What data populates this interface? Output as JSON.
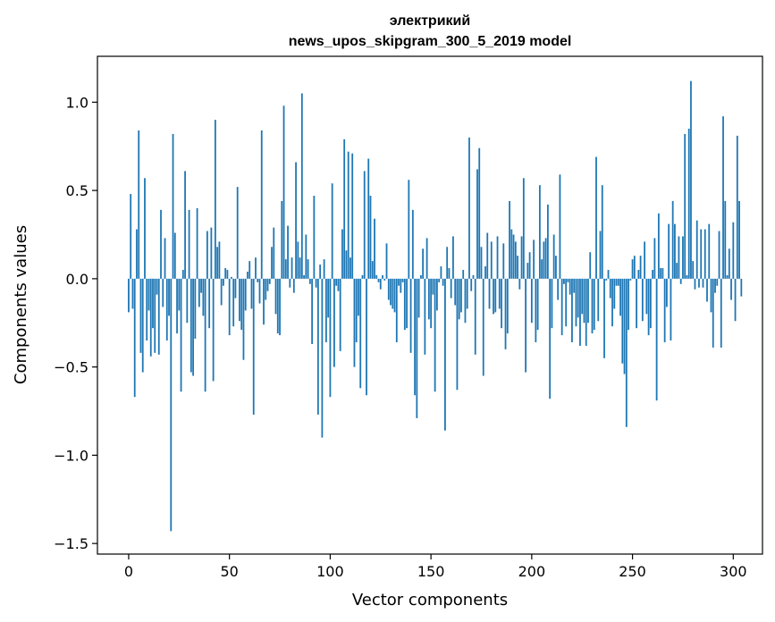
{
  "chart_data": {
    "type": "bar",
    "title": "электрикий",
    "subtitle": "news_upos_skipgram_300_5_2019 model",
    "xlabel": "Vector components",
    "ylabel": "Components values",
    "xlim": [
      -15.5,
      314.5
    ],
    "ylim": [
      -1.56,
      1.26
    ],
    "xticks": [
      0,
      50,
      100,
      150,
      200,
      250,
      300
    ],
    "xtick_labels": [
      "0",
      "50",
      "100",
      "150",
      "200",
      "250",
      "300"
    ],
    "yticks": [
      -1.5,
      -1.0,
      -0.5,
      0.0,
      0.5,
      1.0
    ],
    "ytick_labels": [
      "−1.5",
      "−1.0",
      "−0.5",
      "0.0",
      "0.5",
      "1.0"
    ],
    "grid": false,
    "bar_color": "#1f77b4",
    "values": [
      -0.19,
      0.48,
      -0.17,
      -0.67,
      0.28,
      0.84,
      -0.42,
      -0.53,
      0.57,
      -0.35,
      -0.18,
      -0.44,
      -0.28,
      -0.42,
      -0.09,
      -0.43,
      0.39,
      -0.16,
      0.23,
      -0.35,
      -0.21,
      -1.43,
      0.82,
      0.26,
      -0.31,
      -0.18,
      -0.64,
      0.05,
      0.61,
      -0.25,
      0.39,
      -0.53,
      -0.55,
      -0.34,
      0.4,
      -0.16,
      -0.08,
      -0.21,
      -0.64,
      0.27,
      -0.28,
      0.29,
      -0.58,
      0.9,
      0.18,
      0.21,
      -0.15,
      -0.04,
      0.06,
      0.05,
      -0.32,
      0.01,
      -0.27,
      -0.11,
      0.52,
      -0.24,
      -0.29,
      -0.46,
      -0.18,
      0.04,
      0.1,
      -0.17,
      -0.77,
      0.12,
      -0.02,
      -0.14,
      0.84,
      -0.26,
      -0.12,
      -0.07,
      -0.03,
      0.18,
      0.29,
      -0.2,
      -0.31,
      -0.32,
      0.44,
      0.98,
      0.11,
      0.3,
      -0.05,
      0.12,
      -0.08,
      0.66,
      0.21,
      0.12,
      1.05,
      0.02,
      0.25,
      0.11,
      -0.03,
      -0.37,
      0.47,
      -0.05,
      -0.77,
      0.08,
      -0.9,
      0.11,
      -0.36,
      -0.22,
      -0.67,
      0.54,
      -0.5,
      -0.04,
      -0.07,
      -0.41,
      0.28,
      0.79,
      0.16,
      0.72,
      0.12,
      0.71,
      -0.5,
      -0.36,
      -0.21,
      -0.62,
      0.02,
      0.61,
      -0.66,
      0.68,
      0.47,
      0.1,
      0.34,
      0.02,
      -0.02,
      -0.06,
      0.02,
      -0.01,
      0.2,
      -0.12,
      -0.15,
      -0.17,
      -0.19,
      -0.36,
      -0.04,
      -0.08,
      -0.02,
      -0.29,
      -0.28,
      0.56,
      -0.42,
      0.39,
      -0.66,
      -0.79,
      -0.22,
      0.02,
      0.17,
      -0.43,
      0.23,
      -0.23,
      -0.28,
      -0.09,
      -0.64,
      -0.18,
      -0.02,
      0.07,
      -0.04,
      -0.86,
      0.18,
      0.06,
      -0.11,
      0.24,
      -0.15,
      -0.63,
      -0.23,
      -0.19,
      0.05,
      -0.25,
      -0.17,
      0.8,
      -0.07,
      0.02,
      -0.43,
      0.62,
      0.74,
      0.18,
      -0.55,
      0.07,
      0.26,
      -0.17,
      0.21,
      -0.2,
      -0.19,
      0.24,
      -0.17,
      -0.28,
      0.2,
      -0.4,
      -0.31,
      0.44,
      0.28,
      0.25,
      0.21,
      0.13,
      -0.06,
      0.24,
      0.57,
      -0.53,
      0.09,
      0.15,
      -0.25,
      0.22,
      -0.36,
      -0.29,
      0.53,
      0.11,
      0.21,
      0.23,
      0.42,
      -0.68,
      -0.28,
      0.25,
      0.13,
      -0.12,
      0.59,
      -0.32,
      -0.03,
      -0.27,
      -0.02,
      -0.09,
      -0.36,
      -0.08,
      -0.27,
      -0.22,
      -0.38,
      -0.2,
      -0.25,
      -0.38,
      -0.25,
      0.15,
      -0.31,
      -0.29,
      0.69,
      -0.24,
      0.27,
      0.53,
      -0.45,
      -0.01,
      0.05,
      -0.11,
      -0.27,
      -0.17,
      -0.04,
      -0.04,
      -0.21,
      -0.48,
      -0.54,
      -0.84,
      -0.29,
      -0.01,
      0.11,
      0.13,
      -0.28,
      0.05,
      0.13,
      -0.24,
      0.21,
      -0.2,
      -0.32,
      -0.28,
      0.05,
      0.23,
      -0.69,
      0.37,
      0.06,
      0.06,
      -0.36,
      -0.16,
      0.31,
      -0.35,
      0.44,
      0.31,
      0.09,
      0.24,
      -0.03,
      0.24,
      0.82,
      0.02,
      0.85,
      1.12,
      0.1,
      -0.06,
      0.33,
      -0.05,
      0.28,
      -0.05,
      0.28,
      -0.13,
      0.31,
      -0.19,
      -0.39,
      -0.08,
      -0.04,
      0.27,
      -0.39,
      0.92,
      0.44,
      0.02,
      0.17,
      -0.12,
      0.32,
      -0.24,
      0.81,
      0.44,
      -0.1
    ]
  }
}
